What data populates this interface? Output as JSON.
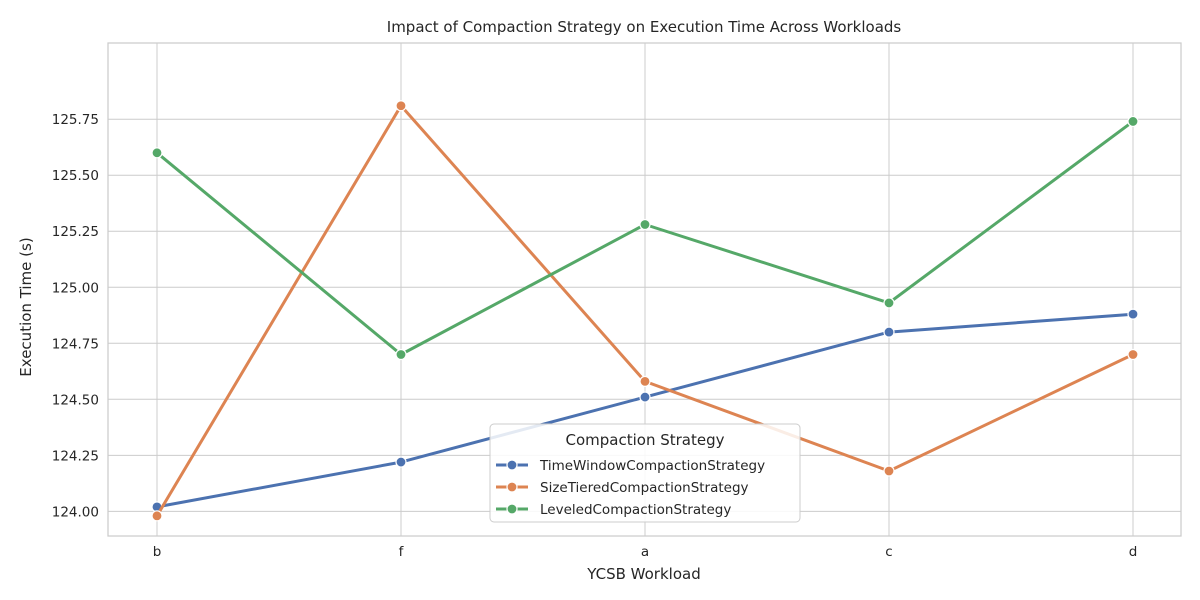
{
  "chart_data": {
    "type": "line",
    "title": "Impact of Compaction Strategy on Execution Time Across Workloads",
    "xlabel": "YCSB Workload",
    "ylabel": "Execution Time (s)",
    "categories": [
      "b",
      "f",
      "a",
      "c",
      "d"
    ],
    "ylim": [
      123.89,
      126.09
    ],
    "yticks": [
      124.0,
      124.25,
      124.5,
      124.75,
      125.0,
      125.25,
      125.5,
      125.75
    ],
    "ytick_labels": [
      "124.00",
      "124.25",
      "124.50",
      "124.75",
      "125.00",
      "125.25",
      "125.50",
      "125.75"
    ],
    "grid": true,
    "legend": {
      "title": "Compaction Strategy",
      "placement": "bottom-center"
    },
    "series": [
      {
        "name": "TimeWindowCompactionStrategy",
        "color": "#4c72b0",
        "values": [
          124.02,
          124.22,
          124.51,
          124.8,
          124.88
        ]
      },
      {
        "name": "SizeTieredCompactionStrategy",
        "color": "#dd8452",
        "values": [
          123.98,
          125.81,
          124.58,
          124.18,
          124.7
        ]
      },
      {
        "name": "LeveledCompactionStrategy",
        "color": "#55a868",
        "values": [
          125.6,
          124.7,
          125.28,
          124.93,
          125.74
        ]
      }
    ]
  }
}
